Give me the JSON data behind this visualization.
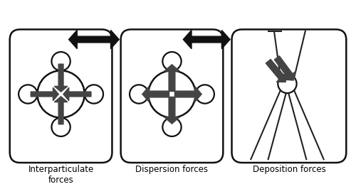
{
  "fig_width": 5.0,
  "fig_height": 2.66,
  "dpi": 100,
  "bg_color": "#ffffff",
  "arrow_color": "#444444",
  "circle_edge_color": "#111111",
  "circle_fill": "#ffffff",
  "labels": [
    "Interparticulate\nforces",
    "Dispersion forces",
    "Deposition forces"
  ],
  "label_fontsize": 8.5,
  "panel_edge_color": "#111111",
  "panel_lw": 1.8
}
